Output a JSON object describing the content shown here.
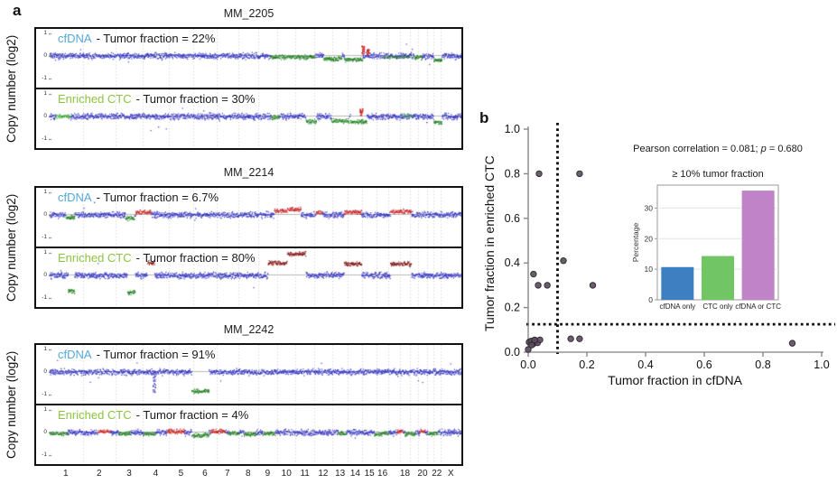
{
  "figure": {
    "panel_a_label": "a",
    "panel_b_label": "b"
  },
  "panel_a": {
    "y_axis_label": "Copy number (log2)",
    "y_ticks": [
      "1",
      "0",
      "-1"
    ],
    "palette": {
      "blue": "#3d3dd0",
      "darkblue": "#24249a",
      "green": "#2f8f2f",
      "darkgreen": "#1d6b1d",
      "brightgreen": "#55c24a",
      "red": "#d93030",
      "darkred": "#8f1d1d",
      "cfdna_label": "#56a8d8",
      "ctc_label": "#8cc63f",
      "grid": "#c9c9c9",
      "zero_line": "#b8b8b8",
      "tick": "#777777"
    },
    "chromosomes": [
      {
        "label": "1",
        "size": 249
      },
      {
        "label": "2",
        "size": 243
      },
      {
        "label": "3",
        "size": 198
      },
      {
        "label": "4",
        "size": 191
      },
      {
        "label": "5",
        "size": 181
      },
      {
        "label": "6",
        "size": 171
      },
      {
        "label": "7",
        "size": 159
      },
      {
        "label": "8",
        "size": 146
      },
      {
        "label": "9",
        "size": 141
      },
      {
        "label": "10",
        "size": 136
      },
      {
        "label": "11",
        "size": 135
      },
      {
        "label": "12",
        "size": 134
      },
      {
        "label": "13",
        "size": 115
      },
      {
        "label": "14",
        "size": 107
      },
      {
        "label": "15",
        "size": 102
      },
      {
        "label": "16",
        "size": 90
      },
      {
        "label": "",
        "size": 81
      },
      {
        "label": "18",
        "size": 78
      },
      {
        "label": "",
        "size": 59
      },
      {
        "label": "20",
        "size": 63
      },
      {
        "label": "",
        "size": 48
      },
      {
        "label": "22",
        "size": 51
      },
      {
        "label": "X",
        "size": 155
      }
    ]
  },
  "chart_data": [
    {
      "id": "cn_mm_2205",
      "type": "scatter",
      "subtype": "genome_copy_number",
      "title": "MM_2205",
      "ylabel": "Copy number (log2)",
      "ylim": [
        -1.3,
        1.3
      ],
      "tracks": [
        {
          "source": "cfDNA",
          "tumor_fraction": "22%",
          "annotation": "- Tumor fraction = 22%",
          "segments": [
            {
              "x": [
                0.535,
                0.645
              ],
              "y": -0.05,
              "c": "green",
              "m": "r"
            },
            {
              "x": [
                0.665,
                0.71
              ],
              "y": -0.13,
              "c": "green",
              "m": "r"
            },
            {
              "x": [
                0.716,
                0.76
              ],
              "y": -0.16,
              "c": "green",
              "m": "r"
            },
            {
              "x": [
                0.757,
                0.764
              ],
              "y": [
                0.05,
                0.45
              ],
              "c": "red",
              "m": "s"
            },
            {
              "x": [
                0.77,
                0.776
              ],
              "y": [
                0.05,
                0.3
              ],
              "c": "red",
              "m": "s"
            },
            {
              "x": [
                0.81,
                0.878
              ],
              "y": -0.05,
              "c": "green",
              "m": "m"
            },
            {
              "x": [
                0.885,
                0.905
              ],
              "y": -0.07,
              "c": "green",
              "m": "r"
            },
            {
              "x": [
                0.932,
                0.952
              ],
              "y": -0.18,
              "c": "green",
              "m": "r"
            }
          ]
        },
        {
          "source": "Enriched CTC",
          "tumor_fraction": "30%",
          "annotation": "- Tumor fraction = 30%",
          "segments": [
            {
              "x": [
                0.016,
                0.052
              ],
              "y": 0.0,
              "c": "brightgreen",
              "m": "r"
            },
            {
              "x": [
                0.538,
                0.558
              ],
              "y": -0.03,
              "c": "green",
              "m": "r"
            },
            {
              "x": [
                0.622,
                0.648
              ],
              "y": -0.22,
              "c": "green",
              "m": "r"
            },
            {
              "x": [
                0.684,
                0.727
              ],
              "y": -0.2,
              "c": "green",
              "m": "r"
            },
            {
              "x": [
                0.73,
                0.77
              ],
              "y": -0.25,
              "c": "green",
              "m": "r"
            },
            {
              "x": [
                0.753,
                0.76
              ],
              "y": [
                0.05,
                0.35
              ],
              "c": "red",
              "m": "s"
            },
            {
              "x": [
                0.856,
                0.882
              ],
              "y": 0.02,
              "c": "brightgreen",
              "m": "m"
            },
            {
              "x": [
                0.932,
                0.952
              ],
              "y": -0.25,
              "c": "green",
              "m": "r"
            }
          ]
        }
      ]
    },
    {
      "id": "cn_mm_2214",
      "type": "scatter",
      "subtype": "genome_copy_number",
      "title": "MM_2214",
      "ylabel": "Copy number (log2)",
      "ylim": [
        -1.3,
        1.3
      ],
      "tracks": [
        {
          "source": "cfDNA",
          "tumor_fraction": "6.7%",
          "annotation": "- Tumor fraction = 6.7%",
          "segments": [
            {
              "x": [
                0.04,
                0.062
              ],
              "y": -0.12,
              "c": "green",
              "m": "r"
            },
            {
              "x": [
                0.185,
                0.207
              ],
              "y": -0.15,
              "c": "green",
              "m": "r"
            },
            {
              "x": [
                0.209,
                0.247
              ],
              "y": 0.12,
              "c": "red",
              "m": "r"
            },
            {
              "x": [
                0.545,
                0.577
              ],
              "y": 0.17,
              "c": "red",
              "m": "r"
            },
            {
              "x": [
                0.577,
                0.61
              ],
              "y": 0.24,
              "c": "red",
              "m": "r"
            },
            {
              "x": [
                0.647,
                0.662
              ],
              "y": 0.1,
              "c": "red",
              "m": "r"
            },
            {
              "x": [
                0.715,
                0.757
              ],
              "y": 0.12,
              "c": "red",
              "m": "r"
            },
            {
              "x": [
                0.827,
                0.878
              ],
              "y": 0.15,
              "c": "red",
              "m": "r"
            }
          ]
        },
        {
          "source": "Enriched CTC",
          "tumor_fraction": "80%",
          "annotation": "- Tumor fraction = 80%",
          "segments": [
            {
              "x": [
                0.046,
                0.062
              ],
              "y": -0.7,
              "c": "green",
              "m": "r"
            },
            {
              "x": [
                0.19,
                0.208
              ],
              "y": -0.75,
              "c": "green",
              "m": "r"
            },
            {
              "x": [
                0.238,
                0.256
              ],
              "y": 0.55,
              "c": "darkred",
              "m": "r"
            },
            {
              "x": [
                0.53,
                0.577
              ],
              "y": 0.55,
              "c": "darkred",
              "m": "r"
            },
            {
              "x": [
                0.577,
                0.622
              ],
              "y": 0.95,
              "c": "darkred",
              "m": "r"
            },
            {
              "x": [
                0.715,
                0.757
              ],
              "y": 0.5,
              "c": "darkred",
              "m": "r"
            },
            {
              "x": [
                0.827,
                0.878
              ],
              "y": 0.5,
              "c": "darkred",
              "m": "r"
            }
          ]
        }
      ]
    },
    {
      "id": "cn_mm_2242",
      "type": "scatter",
      "subtype": "genome_copy_number",
      "title": "MM_2242",
      "ylabel": "Copy number (log2)",
      "ylim": [
        -1.3,
        1.3
      ],
      "tracks": [
        {
          "source": "cfDNA",
          "tumor_fraction": "91%",
          "annotation": "- Tumor fraction = 91%",
          "segments": [
            {
              "x": [
                0.251,
                0.258
              ],
              "y": [
                -0.9,
                -0.05
              ],
              "c": "blue",
              "m": "s"
            },
            {
              "x": [
                0.345,
                0.388
              ],
              "y": -0.85,
              "c": "green",
              "m": "r"
            }
          ]
        },
        {
          "source": "Enriched CTC",
          "tumor_fraction": "4%",
          "annotation": "- Tumor fraction = 4%",
          "segments": [
            {
              "x": [
                0.002,
                0.045
              ],
              "y": -0.06,
              "c": "green",
              "m": "r"
            },
            {
              "x": [
                0.118,
                0.148
              ],
              "y": 0.04,
              "c": "red",
              "m": "r"
            },
            {
              "x": [
                0.168,
                0.198
              ],
              "y": -0.05,
              "c": "green",
              "m": "r"
            },
            {
              "x": [
                0.228,
                0.258
              ],
              "y": -0.06,
              "c": "green",
              "m": "r"
            },
            {
              "x": [
                0.285,
                0.328
              ],
              "y": 0.05,
              "c": "red",
              "m": "r"
            },
            {
              "x": [
                0.345,
                0.388
              ],
              "y": -0.12,
              "c": "green",
              "m": "r"
            },
            {
              "x": [
                0.392,
                0.428
              ],
              "y": 0.05,
              "c": "red",
              "m": "r"
            },
            {
              "x": [
                0.435,
                0.462
              ],
              "y": -0.05,
              "c": "green",
              "m": "r"
            },
            {
              "x": [
                0.472,
                0.502
              ],
              "y": -0.07,
              "c": "green",
              "m": "r"
            },
            {
              "x": [
                0.518,
                0.548
              ],
              "y": -0.05,
              "c": "green",
              "m": "r"
            },
            {
              "x": [
                0.7,
                0.72
              ],
              "y": -0.05,
              "c": "green",
              "m": "r"
            },
            {
              "x": [
                0.788,
                0.822
              ],
              "y": -0.05,
              "c": "green",
              "m": "r"
            },
            {
              "x": [
                0.843,
                0.858
              ],
              "y": 0.06,
              "c": "red",
              "m": "r"
            },
            {
              "x": [
                0.862,
                0.888
              ],
              "y": -0.06,
              "c": "green",
              "m": "r"
            },
            {
              "x": [
                0.898,
                0.912
              ],
              "y": 0.06,
              "c": "red",
              "m": "r"
            },
            {
              "x": [
                0.918,
                0.942
              ],
              "y": -0.05,
              "c": "green",
              "m": "r"
            }
          ]
        }
      ]
    },
    {
      "id": "ctc_vs_cfdna",
      "type": "scatter",
      "xlabel": "Tumor fraction in cfDNA",
      "ylabel": "Tumor fraction in enriched CTC",
      "xlim": [
        0,
        1
      ],
      "ylim": [
        0,
        1
      ],
      "xticks": [
        "0.0",
        "0.2",
        "0.4",
        "0.6",
        "0.8",
        "1.0"
      ],
      "yticks": [
        "0.0",
        "0.2",
        "0.4",
        "0.6",
        "0.8",
        "1.0"
      ],
      "annotation": {
        "prefix": "Pearson correlation = 0.081; ",
        "italic": "p",
        "suffix": " = 0.680"
      },
      "threshold_x": 0.1,
      "threshold_y": 0.125,
      "point_color": "#5a4d5e",
      "point_edge": "#352c38",
      "points": [
        [
          0.037,
          0.8
        ],
        [
          0.175,
          0.8
        ],
        [
          0.12,
          0.41
        ],
        [
          0.018,
          0.35
        ],
        [
          0.034,
          0.3
        ],
        [
          0.065,
          0.3
        ],
        [
          0.22,
          0.3
        ],
        [
          0.003,
          0.045
        ],
        [
          0.01,
          0.05
        ],
        [
          0.018,
          0.038
        ],
        [
          0.025,
          0.05
        ],
        [
          0.032,
          0.042
        ],
        [
          0.012,
          0.032
        ],
        [
          0.04,
          0.055
        ],
        [
          0.022,
          0.055
        ],
        [
          0.0,
          0.012
        ],
        [
          0.145,
          0.06
        ],
        [
          0.175,
          0.06
        ],
        [
          0.9,
          0.04
        ]
      ]
    },
    {
      "id": "fraction_bar",
      "type": "bar",
      "title": "≥ 10% tumor fraction",
      "ylabel": "Percentage",
      "categories": [
        "cfDNA only",
        "CTC only",
        "cfDNA or CTC"
      ],
      "values": [
        10.7,
        14.3,
        35.7
      ],
      "colors": [
        "#3e7fc1",
        "#72c565",
        "#c083c8"
      ],
      "yticks": [
        0,
        10,
        20,
        30
      ],
      "ylim": [
        0,
        37.5
      ],
      "grid": true,
      "legend": "none"
    }
  ]
}
